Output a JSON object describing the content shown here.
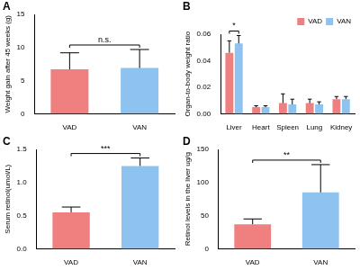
{
  "chart_data": [
    {
      "panel": "A",
      "type": "bar",
      "categories": [
        "VAD",
        "VAN"
      ],
      "values": [
        6.7,
        6.9
      ],
      "errors": [
        2.5,
        2.8
      ],
      "colors": [
        "#f07f7f",
        "#8ec3ef"
      ],
      "ylabel": "Weight gain after 45 weeks (g)",
      "ylim": [
        0,
        15
      ],
      "yticks": [
        0,
        5,
        10,
        15
      ],
      "grid": false,
      "annotations": [
        {
          "text": "n.s.",
          "categories": [
            "VAD",
            "VAN"
          ]
        }
      ]
    },
    {
      "panel": "B",
      "type": "bar",
      "categories": [
        "Liver",
        "Heart",
        "Spleen",
        "Lung",
        "Kidney"
      ],
      "series": [
        {
          "name": "VAD",
          "color": "#f07f7f",
          "values": [
            0.046,
            0.005,
            0.008,
            0.008,
            0.011
          ],
          "errors": [
            0.009,
            0.001,
            0.007,
            0.003,
            0.002
          ]
        },
        {
          "name": "VAN",
          "color": "#8ec3ef",
          "values": [
            0.053,
            0.005,
            0.007,
            0.007,
            0.011
          ],
          "errors": [
            0.006,
            0.001,
            0.004,
            0.002,
            0.002
          ]
        }
      ],
      "ylabel": "Organ-to-body weight ratio",
      "ylim": [
        0,
        0.06
      ],
      "yticks": [
        {
          "value": 0,
          "label": "0.00"
        },
        {
          "value": 0.02,
          "label": "0.02"
        },
        {
          "value": 0.04,
          "label": "0.04"
        },
        {
          "value": 0.06,
          "label": "0.06"
        }
      ],
      "grid": false,
      "legend": "top-right",
      "annotations": [
        {
          "text": "*",
          "category": "Liver"
        }
      ]
    },
    {
      "panel": "C",
      "type": "bar",
      "categories": [
        "VAD",
        "VAN"
      ],
      "values": [
        0.55,
        1.25
      ],
      "errors": [
        0.08,
        0.12
      ],
      "colors": [
        "#f07f7f",
        "#8ec3ef"
      ],
      "ylabel": "Serum retinol(umol/L)",
      "ylim": [
        0,
        1.5
      ],
      "yticks": [
        {
          "value": 0,
          "label": "0.0"
        },
        0.5,
        {
          "value": 1,
          "label": "1.0"
        },
        1.5
      ],
      "grid": false,
      "annotations": [
        {
          "text": "***",
          "categories": [
            "VAD",
            "VAN"
          ]
        }
      ]
    },
    {
      "panel": "D",
      "type": "bar",
      "categories": [
        "VAD",
        "VAN"
      ],
      "values": [
        37,
        85
      ],
      "errors": [
        8,
        42
      ],
      "colors": [
        "#f07f7f",
        "#8ec3ef"
      ],
      "ylabel": "Retinol levels in the liver ug/g",
      "ylim": [
        0,
        150
      ],
      "yticks": [
        0,
        50,
        100,
        150
      ],
      "grid": false,
      "annotations": [
        {
          "text": "**",
          "categories": [
            "VAD",
            "VAN"
          ]
        }
      ]
    }
  ]
}
